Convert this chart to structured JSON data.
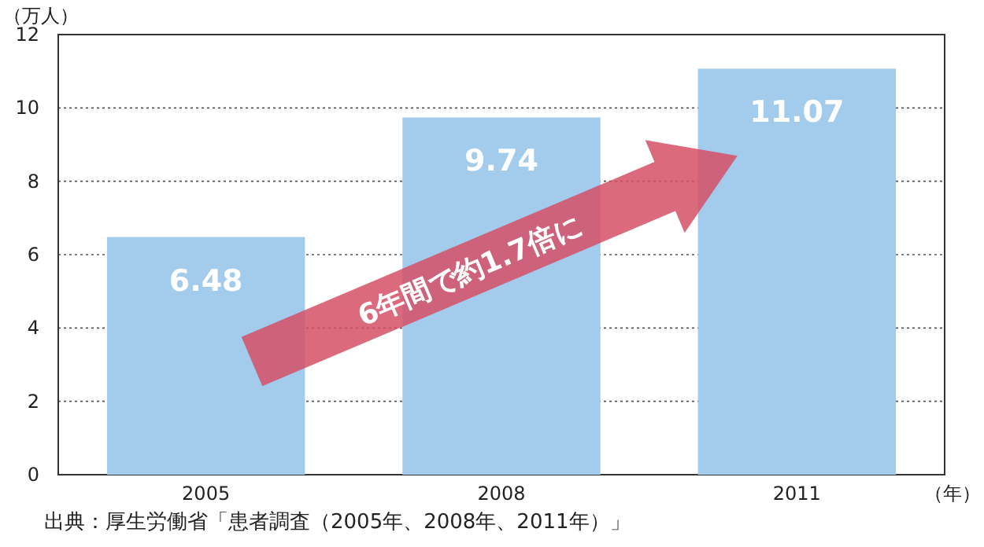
{
  "chart_data": {
    "type": "bar",
    "categories": [
      "2005",
      "2008",
      "2011"
    ],
    "values": [
      6.48,
      9.74,
      11.07
    ],
    "color": "#a3cbec",
    "ylim": [
      0,
      12
    ],
    "yticks": [
      0,
      2,
      4,
      6,
      8,
      10,
      12
    ],
    "grid": "y",
    "data_labels": true,
    "ylabel": "（万人）",
    "xlabel": "（年）",
    "annotations": [
      "6年間で約1.7倍に",
      "出典：厚生労働省「患者調査（2005年、2008年、2011年）」"
    ]
  }
}
